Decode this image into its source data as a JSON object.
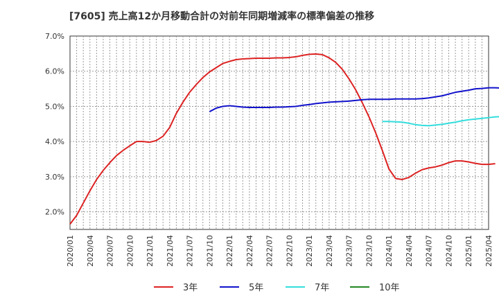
{
  "chart_data": {
    "type": "line",
    "title": "[7605]  売上高12か月移動合計の対前年同期増減率の標準偏差の推移",
    "xlabel": "",
    "ylabel": "",
    "ylim": [
      1.5,
      7.0
    ],
    "yticks": [
      2.0,
      3.0,
      4.0,
      5.0,
      6.0,
      7.0
    ],
    "ytick_labels": [
      "2.0%",
      "3.0%",
      "4.0%",
      "5.0%",
      "6.0%",
      "7.0%"
    ],
    "xticks": [
      "2020/01",
      "2020/04",
      "2020/07",
      "2020/10",
      "2021/01",
      "2021/04",
      "2021/07",
      "2021/10",
      "2022/01",
      "2022/04",
      "2022/07",
      "2022/10",
      "2023/01",
      "2023/04",
      "2023/07",
      "2023/10",
      "2024/01",
      "2024/04",
      "2024/07",
      "2024/10",
      "2025/01",
      "2025/04"
    ],
    "x_start": "2020/01",
    "grid": true,
    "legend_position": "bottom",
    "series": [
      {
        "name": "3年",
        "color": "#dd2222",
        "start_index": 0,
        "values": [
          1.65,
          1.9,
          2.25,
          2.6,
          2.92,
          3.18,
          3.4,
          3.6,
          3.75,
          3.88,
          4.0,
          4.0,
          3.98,
          4.03,
          4.15,
          4.4,
          4.8,
          5.12,
          5.4,
          5.62,
          5.82,
          5.98,
          6.1,
          6.22,
          6.28,
          6.33,
          6.35,
          6.36,
          6.37,
          6.37,
          6.37,
          6.38,
          6.38,
          6.39,
          6.41,
          6.45,
          6.48,
          6.49,
          6.47,
          6.38,
          6.25,
          6.05,
          5.78,
          5.47,
          5.1,
          4.7,
          4.25,
          3.75,
          3.22,
          2.95,
          2.92,
          2.98,
          3.1,
          3.2,
          3.25,
          3.28,
          3.33,
          3.4,
          3.45,
          3.45,
          3.42,
          3.38,
          3.35,
          3.35,
          3.37
        ]
      },
      {
        "name": "5年",
        "color": "#1111cc",
        "start_index": 21,
        "values": [
          4.85,
          4.95,
          5.0,
          5.02,
          5.0,
          4.98,
          4.97,
          4.97,
          4.97,
          4.97,
          4.98,
          4.98,
          4.99,
          5.0,
          5.03,
          5.05,
          5.08,
          5.1,
          5.12,
          5.13,
          5.14,
          5.15,
          5.17,
          5.19,
          5.2,
          5.2,
          5.2,
          5.2,
          5.21,
          5.21,
          5.21,
          5.21,
          5.22,
          5.24,
          5.27,
          5.3,
          5.35,
          5.4,
          5.43,
          5.46,
          5.5,
          5.51,
          5.53,
          5.53,
          5.52,
          5.47
        ]
      },
      {
        "name": "7年",
        "color": "#33dddd",
        "start_index": 47,
        "values": [
          4.57,
          4.57,
          4.56,
          4.55,
          4.52,
          4.48,
          4.46,
          4.45,
          4.47,
          4.49,
          4.52,
          4.55,
          4.59,
          4.62,
          4.64,
          4.66,
          4.68,
          4.7,
          4.71,
          4.72
        ]
      },
      {
        "name": "10年",
        "color": "#228822",
        "start_index": 0,
        "values": []
      }
    ]
  }
}
